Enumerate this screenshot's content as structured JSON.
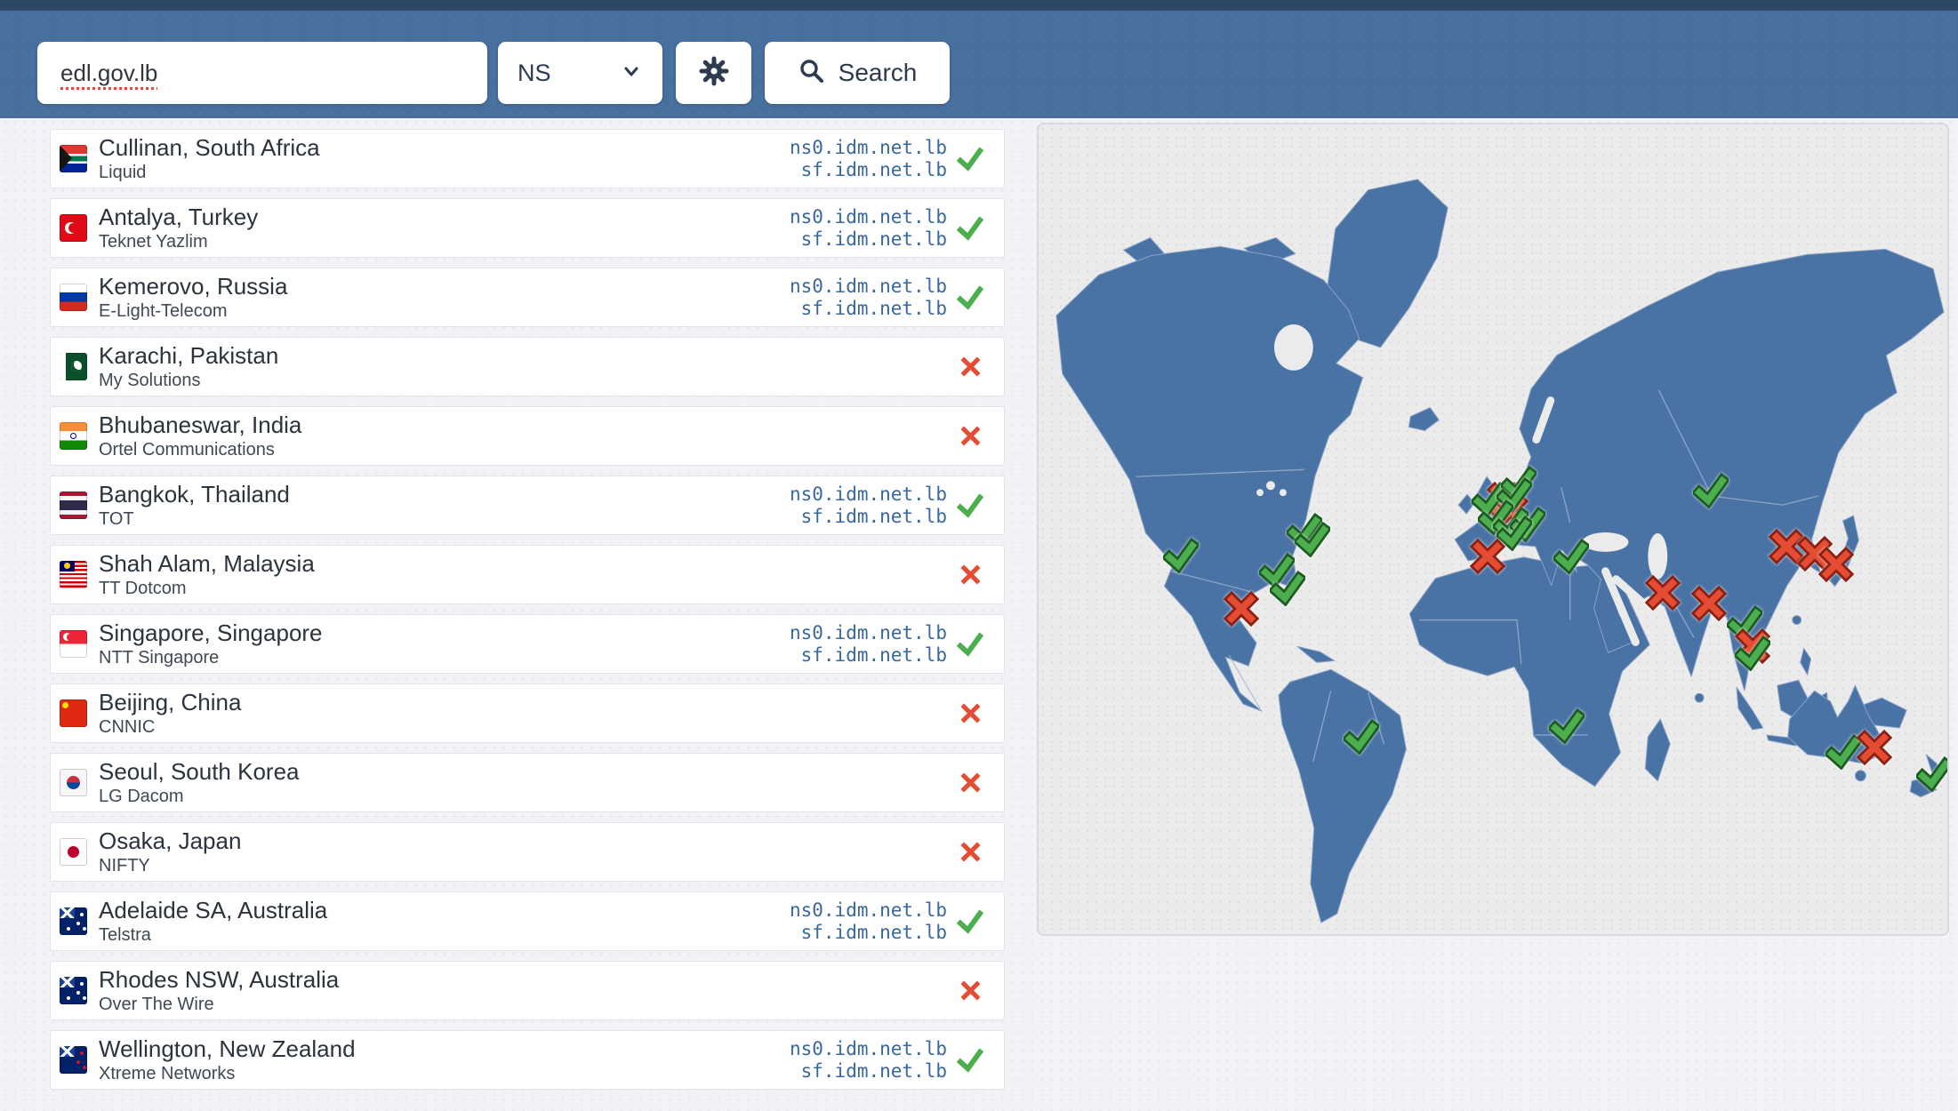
{
  "header": {
    "domain_value": "edl.gov.lb",
    "record_type": "NS",
    "search_label": "Search"
  },
  "results": [
    {
      "flag": "south-africa",
      "location": "Cullinan, South Africa",
      "provider": "Liquid",
      "records": [
        "ns0.idm.net.lb",
        "sf.idm.net.lb"
      ],
      "status": "ok"
    },
    {
      "flag": "turkey",
      "location": "Antalya, Turkey",
      "provider": "Teknet Yazlim",
      "records": [
        "ns0.idm.net.lb",
        "sf.idm.net.lb"
      ],
      "status": "ok"
    },
    {
      "flag": "russia",
      "location": "Kemerovo, Russia",
      "provider": "E-Light-Telecom",
      "records": [
        "ns0.idm.net.lb",
        "sf.idm.net.lb"
      ],
      "status": "ok"
    },
    {
      "flag": "pakistan",
      "location": "Karachi, Pakistan",
      "provider": "My Solutions",
      "records": [],
      "status": "fail"
    },
    {
      "flag": "india",
      "location": "Bhubaneswar, India",
      "provider": "Ortel Communications",
      "records": [],
      "status": "fail"
    },
    {
      "flag": "thailand",
      "location": "Bangkok, Thailand",
      "provider": "TOT",
      "records": [
        "ns0.idm.net.lb",
        "sf.idm.net.lb"
      ],
      "status": "ok"
    },
    {
      "flag": "malaysia",
      "location": "Shah Alam, Malaysia",
      "provider": "TT Dotcom",
      "records": [],
      "status": "fail"
    },
    {
      "flag": "singapore",
      "location": "Singapore, Singapore",
      "provider": "NTT Singapore",
      "records": [
        "ns0.idm.net.lb",
        "sf.idm.net.lb"
      ],
      "status": "ok"
    },
    {
      "flag": "china",
      "location": "Beijing, China",
      "provider": "CNNIC",
      "records": [],
      "status": "fail"
    },
    {
      "flag": "south-korea",
      "location": "Seoul, South Korea",
      "provider": "LG Dacom",
      "records": [],
      "status": "fail"
    },
    {
      "flag": "japan",
      "location": "Osaka, Japan",
      "provider": "NIFTY",
      "records": [],
      "status": "fail"
    },
    {
      "flag": "australia",
      "location": "Adelaide SA, Australia",
      "provider": "Telstra",
      "records": [
        "ns0.idm.net.lb",
        "sf.idm.net.lb"
      ],
      "status": "ok"
    },
    {
      "flag": "australia",
      "location": "Rhodes NSW, Australia",
      "provider": "Over The Wire",
      "records": [],
      "status": "fail"
    },
    {
      "flag": "new-zealand",
      "location": "Wellington, New Zealand",
      "provider": "Xtreme Networks",
      "records": [
        "ns0.idm.net.lb",
        "sf.idm.net.lb"
      ],
      "status": "ok"
    }
  ],
  "map": {
    "markers": [
      {
        "type": "ok",
        "x": 15.7,
        "y": 53.2
      },
      {
        "type": "ok",
        "x": 29.3,
        "y": 50.2
      },
      {
        "type": "ok",
        "x": 30.1,
        "y": 51.3
      },
      {
        "type": "ok",
        "x": 26.2,
        "y": 55.1
      },
      {
        "type": "ok",
        "x": 27.4,
        "y": 57.3
      },
      {
        "type": "fail",
        "x": 22.3,
        "y": 59.8
      },
      {
        "type": "ok",
        "x": 35.5,
        "y": 75.6
      },
      {
        "type": "fail",
        "x": 51.3,
        "y": 46.3
      },
      {
        "type": "fail",
        "x": 52.0,
        "y": 47.8
      },
      {
        "type": "ok",
        "x": 49.6,
        "y": 46.3
      },
      {
        "type": "ok",
        "x": 52.8,
        "y": 44.3
      },
      {
        "type": "ok",
        "x": 52.3,
        "y": 45.8
      },
      {
        "type": "ok",
        "x": 50.3,
        "y": 48.5
      },
      {
        "type": "ok",
        "x": 52.0,
        "y": 49.4
      },
      {
        "type": "ok",
        "x": 53.8,
        "y": 49.4
      },
      {
        "type": "ok",
        "x": 52.3,
        "y": 50.5
      },
      {
        "type": "fail",
        "x": 49.4,
        "y": 53.4
      },
      {
        "type": "ok",
        "x": 58.6,
        "y": 53.4
      },
      {
        "type": "ok",
        "x": 74.0,
        "y": 45.2
      },
      {
        "type": "fail",
        "x": 68.7,
        "y": 57.8
      },
      {
        "type": "fail",
        "x": 73.8,
        "y": 59.2
      },
      {
        "type": "fail",
        "x": 82.3,
        "y": 52.1
      },
      {
        "type": "fail",
        "x": 85.4,
        "y": 53.0
      },
      {
        "type": "fail",
        "x": 87.8,
        "y": 54.3
      },
      {
        "type": "ok",
        "x": 77.7,
        "y": 61.6
      },
      {
        "type": "fail",
        "x": 78.6,
        "y": 64.4
      },
      {
        "type": "ok",
        "x": 78.6,
        "y": 65.3
      },
      {
        "type": "ok",
        "x": 58.1,
        "y": 74.3
      },
      {
        "type": "ok",
        "x": 88.6,
        "y": 77.5
      },
      {
        "type": "fail",
        "x": 92.0,
        "y": 76.9
      },
      {
        "type": "ok",
        "x": 98.5,
        "y": 80.2
      }
    ]
  },
  "colors": {
    "header_bg": "#47709f",
    "top_strip": "#2c4865",
    "land": "#4a73a5",
    "ocean": "#ebebeb",
    "ok_green": "#4cae4e",
    "ok_dark": "#1c5c21",
    "fail_red": "#e44d33",
    "fail_dark": "#8c2012",
    "record_text": "#38689d"
  }
}
